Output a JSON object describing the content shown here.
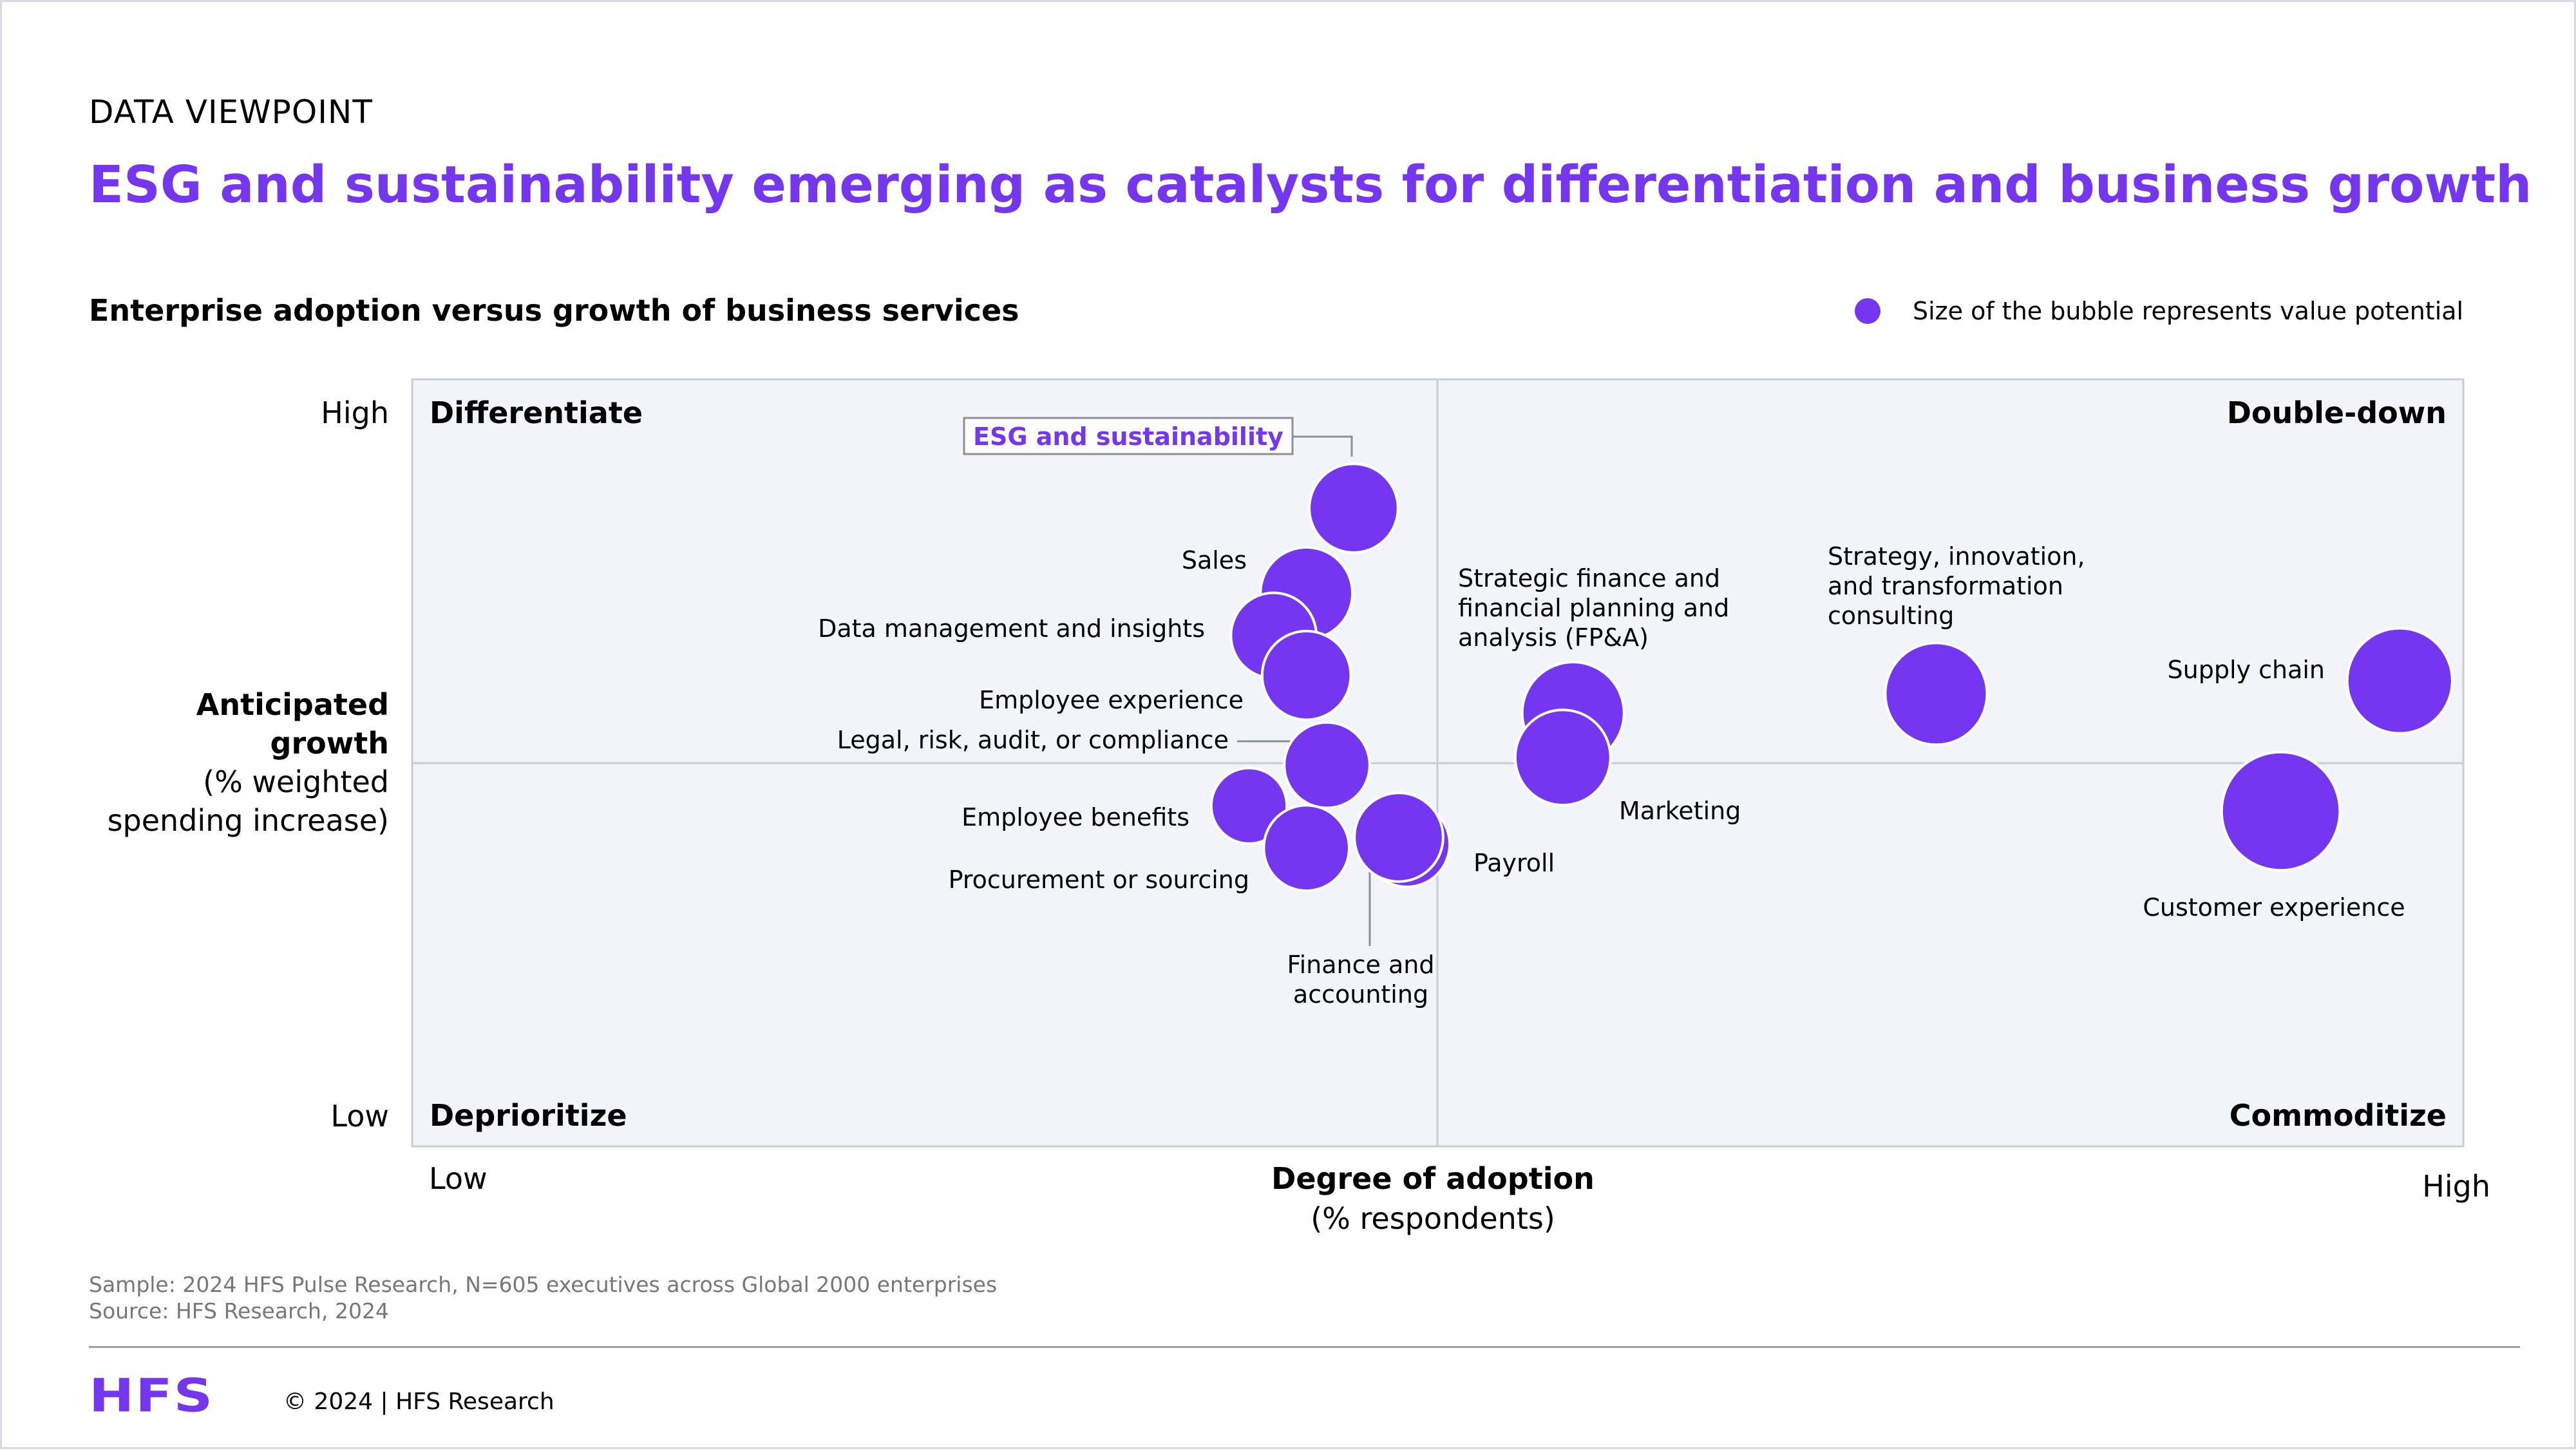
{
  "eyebrow": "DATA VIEWPOINT",
  "headline": "ESG and sustainability emerging as catalysts for differentiation and business growth",
  "chart_title": "Enterprise adoption versus growth of business services",
  "legend_text": "Size of the bubble represents value potential",
  "colors": {
    "accent": "#7437ef",
    "plot_bg": "#f1f4f8",
    "axis_line": "#c9ced6",
    "leader": "#8a9099"
  },
  "y_axis": {
    "high": "High",
    "low": "Low",
    "title_line1": "Anticipated",
    "title_line2": "growth",
    "subtitle_line1": "(% weighted",
    "subtitle_line2": "spending increase)"
  },
  "x_axis": {
    "low": "Low",
    "high": "High",
    "title": "Degree of adoption",
    "subtitle": "(% respondents)"
  },
  "footnotes": {
    "sample": "Sample: 2024 HFS Pulse Research, N=605 executives across Global 2000 enterprises",
    "source": "Source: HFS Research, 2024"
  },
  "footer": {
    "logo": "HFS",
    "copyright": "© 2024 | HFS Research"
  },
  "chart_data": {
    "type": "scatter",
    "subtype": "bubble",
    "title": "Enterprise adoption versus growth of business services",
    "xlabel": "Degree of adoption (% respondents)",
    "ylabel": "Anticipated growth (% weighted spending increase)",
    "xlim": [
      0,
      100
    ],
    "ylim": [
      0,
      100
    ],
    "grid": false,
    "legend_position": "top-right",
    "quadrant_divider": {
      "x": 50,
      "y": 50
    },
    "quadrants": {
      "top_left": "Differentiate",
      "top_right": "Double-down",
      "bottom_left": "Deprioritize",
      "bottom_right": "Commoditize"
    },
    "points": [
      {
        "name": "ESG and sustainability",
        "x": 45.9,
        "y": 83.2,
        "size": 27,
        "highlight": true,
        "label_lines": [
          "ESG and sustainability"
        ]
      },
      {
        "name": "Sales",
        "x": 43.6,
        "y": 72.1,
        "size": 28,
        "label_lines": [
          "Sales"
        ]
      },
      {
        "name": "Data management and insights",
        "x": 42.0,
        "y": 66.6,
        "size": 26,
        "label_lines": [
          "Data management and insights"
        ]
      },
      {
        "name": "Employee experience",
        "x": 43.6,
        "y": 61.4,
        "size": 27,
        "label_lines": [
          "Employee experience"
        ]
      },
      {
        "name": "Legal, risk, audit, or compliance",
        "x": 44.6,
        "y": 49.7,
        "size": 26,
        "label_lines": [
          "Legal, risk, audit, or compliance"
        ]
      },
      {
        "name": "Employee benefits",
        "x": 40.8,
        "y": 44.4,
        "size": 23,
        "label_lines": [
          "Employee benefits"
        ]
      },
      {
        "name": "Procurement or sourcing",
        "x": 43.6,
        "y": 38.9,
        "size": 26,
        "label_lines": [
          "Procurement or sourcing"
        ]
      },
      {
        "name": "Payroll",
        "x": 48.5,
        "y": 39.4,
        "size": 26,
        "label_lines": [
          "Payroll"
        ]
      },
      {
        "name": "Finance and accounting",
        "x": 48.1,
        "y": 40.3,
        "size": 27,
        "label_lines": [
          "Finance and",
          "accounting"
        ]
      },
      {
        "name": "Strategic finance and financial planning and analysis (FP&A)",
        "x": 56.6,
        "y": 56.5,
        "size": 31,
        "label_lines": [
          "Strategic finance and",
          "financial planning and",
          "analysis (FP&A)"
        ]
      },
      {
        "name": "Marketing",
        "x": 56.1,
        "y": 50.7,
        "size": 29,
        "label_lines": [
          "Marketing"
        ]
      },
      {
        "name": "Strategy, innovation, and transformation consulting",
        "x": 74.3,
        "y": 59.0,
        "size": 31,
        "label_lines": [
          "Strategy, innovation,",
          "and transformation",
          "consulting"
        ]
      },
      {
        "name": "Supply chain",
        "x": 96.9,
        "y": 60.7,
        "size": 32,
        "label_lines": [
          "Supply chain"
        ]
      },
      {
        "name": "Customer experience",
        "x": 91.1,
        "y": 43.7,
        "size": 36,
        "label_lines": [
          "Customer experience"
        ]
      }
    ]
  }
}
